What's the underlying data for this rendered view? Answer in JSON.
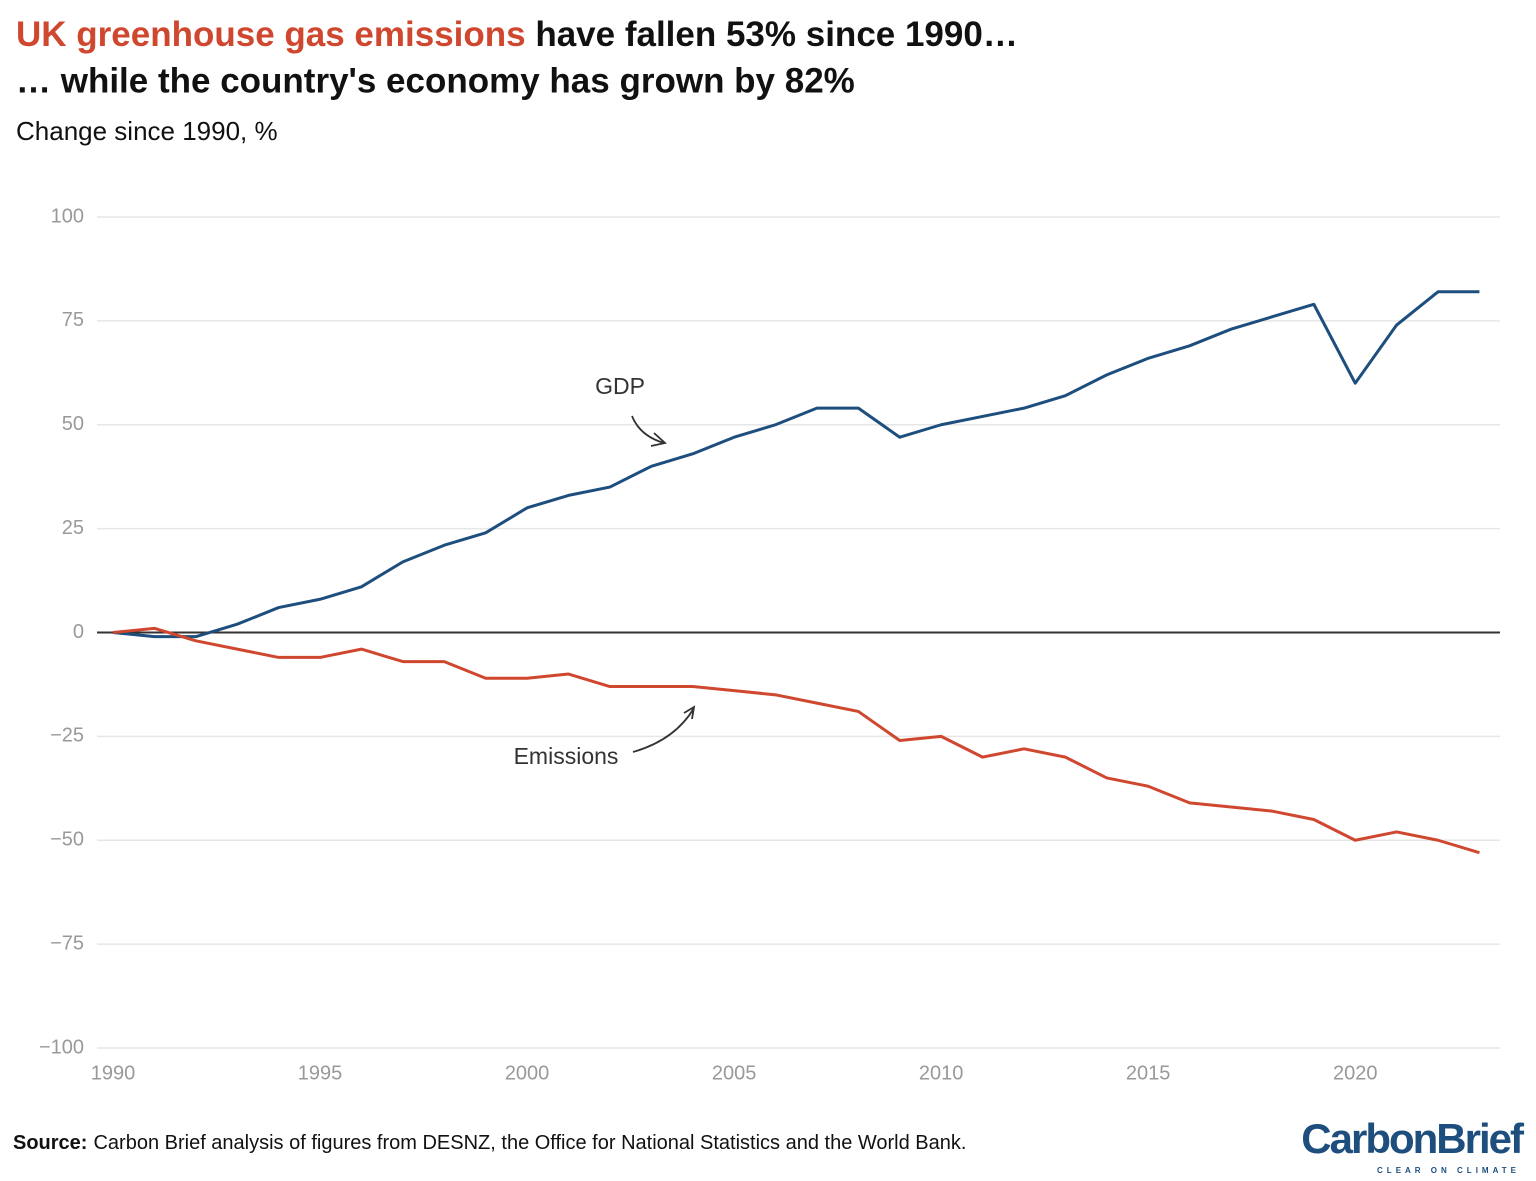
{
  "chart_data": {
    "type": "line",
    "title_highlight": "UK greenhouse gas emissions",
    "title_rest": " have fallen 53% since 1990…",
    "title_line2": "… while the country's economy has grown by 82%",
    "subtitle": "Change since 1990, %",
    "x": [
      1990,
      1991,
      1992,
      1993,
      1994,
      1995,
      1996,
      1997,
      1998,
      1999,
      2000,
      2001,
      2002,
      2003,
      2004,
      2005,
      2006,
      2007,
      2008,
      2009,
      2010,
      2011,
      2012,
      2013,
      2014,
      2015,
      2016,
      2017,
      2018,
      2019,
      2020,
      2021,
      2022,
      2023
    ],
    "series": [
      {
        "name": "GDP",
        "color": "#1d4e7d",
        "values": [
          0,
          -1,
          -1,
          2,
          6,
          8,
          11,
          17,
          21,
          24,
          30,
          33,
          35,
          40,
          43,
          47,
          50,
          54,
          54,
          47,
          50,
          52,
          54,
          57,
          62,
          66,
          69,
          73,
          76,
          79,
          60,
          74,
          82,
          82
        ]
      },
      {
        "name": "Emissions",
        "color": "#d0472f",
        "values": [
          0,
          1,
          -2,
          -4,
          -6,
          -6,
          -4,
          -7,
          -7,
          -11,
          -11,
          -10,
          -13,
          -13,
          -13,
          -14,
          -15,
          -17,
          -19,
          -26,
          -25,
          -30,
          -28,
          -30,
          -35,
          -37,
          -41,
          -42,
          -43,
          -45,
          -50,
          -48,
          -50,
          -53
        ]
      }
    ],
    "xlim": [
      1990,
      2023.4
    ],
    "xticks": [
      1990,
      1995,
      2000,
      2005,
      2010,
      2015,
      2020
    ],
    "ylim": [
      -100,
      100
    ],
    "yticks": [
      {
        "value": -100,
        "label": "−100"
      },
      {
        "value": -75,
        "label": "−75"
      },
      {
        "value": -50,
        "label": "−50"
      },
      {
        "value": -25,
        "label": "−25"
      },
      0,
      25,
      50,
      75,
      100
    ],
    "grid": true,
    "source_label": "Source:",
    "source": "Carbon Brief analysis of figures from DESNZ, the Office for National Statistics and the World Bank.",
    "logo": "CarbonBrief",
    "logo_tagline": "CLEAR ON CLIMATE"
  }
}
